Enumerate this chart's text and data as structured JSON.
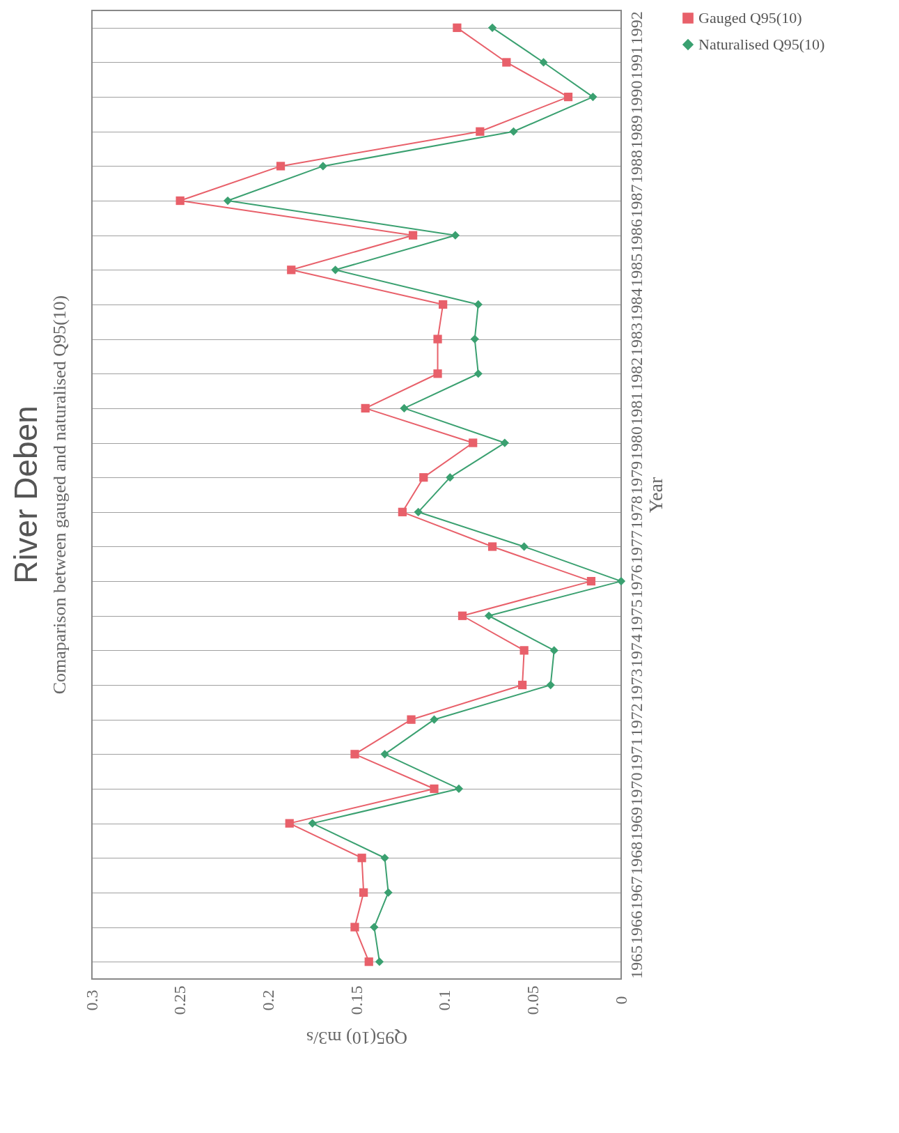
{
  "chart_data": {
    "type": "line",
    "orientation": "horizontal",
    "title": "River Deben",
    "subtitle": "Comaparison between gauged and naturalised Q95(10)",
    "xlabel": "Q95(10) m3/s",
    "ylabel": "Year",
    "categories": [
      "1992",
      "1991",
      "1990",
      "1989",
      "1988",
      "1987",
      "1986",
      "1985",
      "1984",
      "1983",
      "1982",
      "1981",
      "1980",
      "1979",
      "1978",
      "1977",
      "1976",
      "1975",
      "1974",
      "1973",
      "1972",
      "1971",
      "1970",
      "1969",
      "1968",
      "1967",
      "1966",
      "1965"
    ],
    "series": [
      {
        "name": "Gauged Q95(10)",
        "color": "#e8606a",
        "marker": "square",
        "values": [
          0.093,
          0.065,
          0.03,
          0.08,
          0.193,
          0.25,
          0.118,
          0.187,
          0.101,
          0.104,
          0.104,
          0.145,
          0.084,
          0.112,
          0.124,
          0.073,
          0.017,
          0.09,
          0.055,
          0.056,
          0.119,
          0.151,
          0.106,
          0.188,
          0.147,
          0.146,
          0.151,
          0.143
        ]
      },
      {
        "name": "Naturalised Q95(10)",
        "color": "#3aa070",
        "marker": "diamond",
        "values": [
          0.073,
          0.044,
          0.016,
          0.061,
          0.169,
          0.223,
          0.094,
          0.162,
          0.081,
          0.083,
          0.081,
          0.123,
          0.066,
          0.097,
          0.115,
          0.055,
          0.0,
          0.075,
          0.038,
          0.04,
          0.106,
          0.134,
          0.092,
          0.175,
          0.134,
          0.132,
          0.14,
          0.137
        ]
      }
    ],
    "xlim": [
      0.3,
      0
    ],
    "xticks": [
      0.3,
      0.25,
      0.2,
      0.15,
      0.1,
      0.05,
      0
    ],
    "grid": "y",
    "legend": "right",
    "line_style": "solid"
  }
}
